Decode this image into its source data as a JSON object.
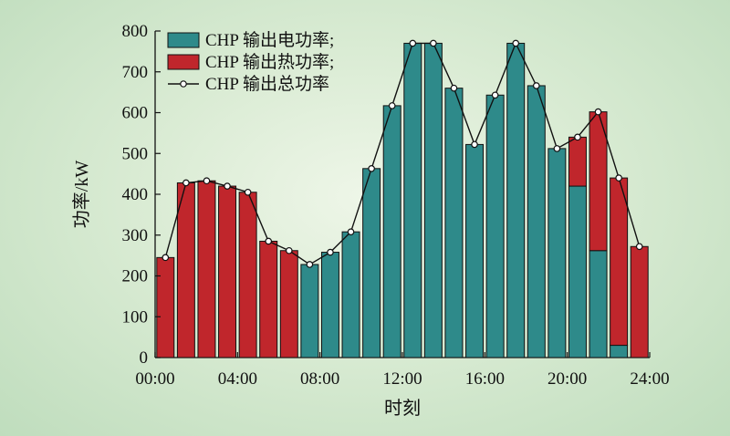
{
  "chart_data": {
    "type": "bar",
    "stacked": true,
    "xlabel": "时刻",
    "ylabel": "功率/kW",
    "ylim": [
      0,
      800
    ],
    "yticks": [
      0,
      100,
      200,
      300,
      400,
      500,
      600,
      700,
      800
    ],
    "xlim": [
      0,
      24
    ],
    "xticks": [
      0,
      4,
      8,
      12,
      16,
      20,
      24
    ],
    "xtick_labels": [
      "00:00",
      "04:00",
      "08:00",
      "12:00",
      "16:00",
      "20:00",
      "24:00"
    ],
    "grid": false,
    "legend_position": "top-center",
    "hours": [
      1,
      2,
      3,
      4,
      5,
      6,
      7,
      8,
      9,
      10,
      11,
      12,
      13,
      14,
      15,
      16,
      17,
      18,
      19,
      20,
      21,
      22,
      23,
      24
    ],
    "series": [
      {
        "name": "CHP 输出电功率;",
        "color": "#2e8a8a",
        "values": [
          0,
          0,
          0,
          0,
          0,
          0,
          0,
          228,
          258,
          308,
          463,
          617,
          770,
          770,
          660,
          522,
          643,
          770,
          666,
          512,
          420,
          262,
          30,
          0
        ]
      },
      {
        "name": "CHP 输出热功率;",
        "color": "#c0262c",
        "values": [
          245,
          428,
          433,
          420,
          405,
          285,
          262,
          0,
          0,
          0,
          0,
          0,
          0,
          0,
          0,
          0,
          0,
          0,
          0,
          0,
          120,
          340,
          410,
          272
        ]
      }
    ],
    "line": {
      "name": "CHP 输出总功率",
      "x": [
        0.5,
        1.5,
        2.5,
        3.5,
        4.5,
        5.5,
        6.5,
        7.5,
        8.5,
        9.5,
        10.5,
        11.5,
        12.5,
        13.5,
        14.5,
        15.5,
        16.5,
        17.5,
        18.5,
        19.5,
        20.5,
        21.5,
        22.5,
        23.5
      ],
      "y": [
        245,
        428,
        433,
        420,
        405,
        285,
        262,
        228,
        258,
        308,
        463,
        617,
        770,
        770,
        660,
        522,
        643,
        770,
        666,
        512,
        540,
        602,
        440,
        272
      ]
    }
  }
}
